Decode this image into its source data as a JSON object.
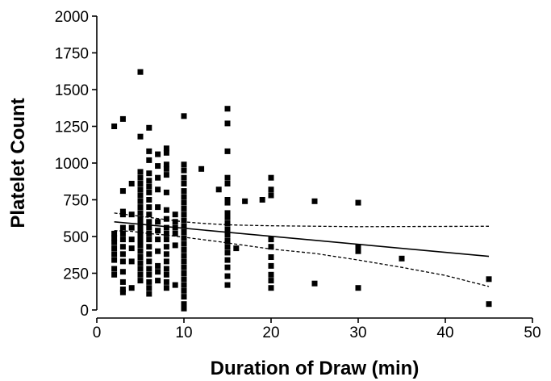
{
  "chart_data": {
    "type": "scatter",
    "title": "",
    "xlabel": "Duration of Draw (min)",
    "ylabel": "Platelet Count",
    "xlim": [
      0,
      50
    ],
    "ylim": [
      0,
      2000
    ],
    "xticks": [
      0,
      10,
      20,
      30,
      40,
      50
    ],
    "yticks": [
      0,
      250,
      500,
      750,
      1000,
      1250,
      1500,
      1750,
      2000
    ],
    "grid": false,
    "legend": "none",
    "points": [
      [
        2,
        1250
      ],
      [
        2,
        520
      ],
      [
        2,
        490
      ],
      [
        2,
        460
      ],
      [
        2,
        420
      ],
      [
        2,
        380
      ],
      [
        2,
        340
      ],
      [
        2,
        280
      ],
      [
        2,
        240
      ],
      [
        3,
        1300
      ],
      [
        3,
        810
      ],
      [
        3,
        670
      ],
      [
        3,
        650
      ],
      [
        3,
        560
      ],
      [
        3,
        520
      ],
      [
        3,
        480
      ],
      [
        3,
        430
      ],
      [
        3,
        380
      ],
      [
        3,
        330
      ],
      [
        3,
        260
      ],
      [
        3,
        190
      ],
      [
        3,
        140
      ],
      [
        3,
        120
      ],
      [
        4,
        860
      ],
      [
        4,
        650
      ],
      [
        4,
        560
      ],
      [
        4,
        480
      ],
      [
        4,
        420
      ],
      [
        4,
        330
      ],
      [
        4,
        150
      ],
      [
        5,
        1620
      ],
      [
        5,
        1180
      ],
      [
        5,
        940
      ],
      [
        5,
        900
      ],
      [
        5,
        860
      ],
      [
        5,
        820
      ],
      [
        5,
        780
      ],
      [
        5,
        740
      ],
      [
        5,
        700
      ],
      [
        5,
        660
      ],
      [
        5,
        620
      ],
      [
        5,
        590
      ],
      [
        5,
        560
      ],
      [
        5,
        530
      ],
      [
        5,
        500
      ],
      [
        5,
        470
      ],
      [
        5,
        440
      ],
      [
        5,
        400
      ],
      [
        5,
        360
      ],
      [
        5,
        320
      ],
      [
        5,
        280
      ],
      [
        5,
        240
      ],
      [
        5,
        200
      ],
      [
        6,
        1240
      ],
      [
        6,
        1080
      ],
      [
        6,
        1020
      ],
      [
        6,
        930
      ],
      [
        6,
        880
      ],
      [
        6,
        840
      ],
      [
        6,
        800
      ],
      [
        6,
        750
      ],
      [
        6,
        700
      ],
      [
        6,
        650
      ],
      [
        6,
        600
      ],
      [
        6,
        560
      ],
      [
        6,
        520
      ],
      [
        6,
        480
      ],
      [
        6,
        430
      ],
      [
        6,
        380
      ],
      [
        6,
        330
      ],
      [
        6,
        280
      ],
      [
        6,
        240
      ],
      [
        6,
        190
      ],
      [
        6,
        150
      ],
      [
        6,
        110
      ],
      [
        7,
        1060
      ],
      [
        7,
        980
      ],
      [
        7,
        900
      ],
      [
        7,
        820
      ],
      [
        7,
        700
      ],
      [
        7,
        600
      ],
      [
        7,
        540
      ],
      [
        7,
        480
      ],
      [
        7,
        400
      ],
      [
        7,
        300
      ],
      [
        7,
        260
      ],
      [
        7,
        200
      ],
      [
        8,
        1100
      ],
      [
        8,
        1070
      ],
      [
        8,
        990
      ],
      [
        8,
        960
      ],
      [
        8,
        920
      ],
      [
        8,
        800
      ],
      [
        8,
        680
      ],
      [
        8,
        620
      ],
      [
        8,
        560
      ],
      [
        8,
        520
      ],
      [
        8,
        480
      ],
      [
        8,
        430
      ],
      [
        8,
        380
      ],
      [
        8,
        330
      ],
      [
        8,
        280
      ],
      [
        8,
        240
      ],
      [
        8,
        190
      ],
      [
        8,
        150
      ],
      [
        9,
        650
      ],
      [
        9,
        600
      ],
      [
        9,
        560
      ],
      [
        9,
        520
      ],
      [
        9,
        440
      ],
      [
        9,
        170
      ],
      [
        10,
        1320
      ],
      [
        10,
        990
      ],
      [
        10,
        950
      ],
      [
        10,
        900
      ],
      [
        10,
        860
      ],
      [
        10,
        810
      ],
      [
        10,
        770
      ],
      [
        10,
        730
      ],
      [
        10,
        690
      ],
      [
        10,
        650
      ],
      [
        10,
        610
      ],
      [
        10,
        570
      ],
      [
        10,
        530
      ],
      [
        10,
        490
      ],
      [
        10,
        450
      ],
      [
        10,
        410
      ],
      [
        10,
        370
      ],
      [
        10,
        330
      ],
      [
        10,
        290
      ],
      [
        10,
        250
      ],
      [
        10,
        210
      ],
      [
        10,
        170
      ],
      [
        10,
        130
      ],
      [
        10,
        90
      ],
      [
        10,
        40
      ],
      [
        10,
        10
      ],
      [
        12,
        960
      ],
      [
        14,
        820
      ],
      [
        15,
        1370
      ],
      [
        15,
        1270
      ],
      [
        15,
        1080
      ],
      [
        15,
        900
      ],
      [
        15,
        860
      ],
      [
        15,
        750
      ],
      [
        15,
        730
      ],
      [
        15,
        660
      ],
      [
        15,
        630
      ],
      [
        15,
        590
      ],
      [
        15,
        550
      ],
      [
        15,
        510
      ],
      [
        15,
        470
      ],
      [
        15,
        430
      ],
      [
        15,
        390
      ],
      [
        15,
        340
      ],
      [
        15,
        290
      ],
      [
        15,
        230
      ],
      [
        15,
        170
      ],
      [
        16,
        420
      ],
      [
        17,
        740
      ],
      [
        19,
        750
      ],
      [
        20,
        900
      ],
      [
        20,
        820
      ],
      [
        20,
        780
      ],
      [
        20,
        480
      ],
      [
        20,
        430
      ],
      [
        20,
        360
      ],
      [
        20,
        300
      ],
      [
        20,
        240
      ],
      [
        20,
        200
      ],
      [
        20,
        150
      ],
      [
        25,
        740
      ],
      [
        25,
        180
      ],
      [
        30,
        730
      ],
      [
        30,
        430
      ],
      [
        30,
        400
      ],
      [
        30,
        150
      ],
      [
        35,
        350
      ],
      [
        45,
        210
      ],
      [
        45,
        40
      ]
    ],
    "fit_line": [
      [
        2,
        600
      ],
      [
        45,
        365
      ]
    ],
    "ci_upper": [
      [
        2,
        660
      ],
      [
        4,
        645
      ],
      [
        6,
        630
      ],
      [
        8,
        615
      ],
      [
        10,
        600
      ],
      [
        12,
        590
      ],
      [
        14,
        583
      ],
      [
        16,
        578
      ],
      [
        20,
        573
      ],
      [
        30,
        567
      ],
      [
        45,
        570
      ]
    ],
    "ci_lower": [
      [
        2,
        540
      ],
      [
        4,
        535
      ],
      [
        6,
        520
      ],
      [
        8,
        510
      ],
      [
        10,
        495
      ],
      [
        12,
        480
      ],
      [
        14,
        465
      ],
      [
        16,
        448
      ],
      [
        20,
        415
      ],
      [
        25,
        385
      ],
      [
        30,
        340
      ],
      [
        35,
        290
      ],
      [
        40,
        235
      ],
      [
        45,
        160
      ]
    ]
  }
}
